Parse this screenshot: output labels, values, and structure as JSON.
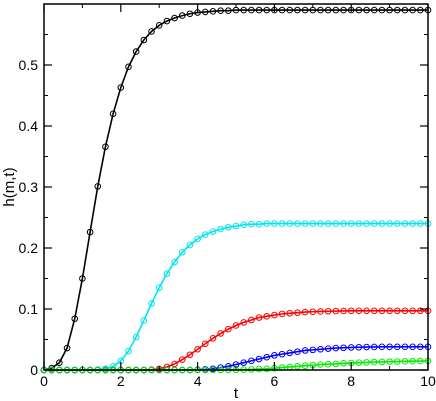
{
  "chart_data": {
    "type": "line",
    "title": "",
    "xlabel": "t",
    "ylabel": "h(m,t)",
    "xlim": [
      0,
      10
    ],
    "ylim": [
      0,
      0.6
    ],
    "xticks": [
      0,
      2,
      4,
      6,
      8,
      10
    ],
    "xtick_labels": [
      "0",
      "2",
      "4",
      "6",
      "8",
      "10"
    ],
    "yticks": [
      0,
      0.1,
      0.2,
      0.3,
      0.4,
      0.5
    ],
    "ytick_labels": [
      "0",
      "0.1",
      "0.2",
      "0.3",
      "0.4",
      "0.5"
    ],
    "grid": false,
    "legend": "none",
    "marker": "open-circle",
    "series": [
      {
        "color": "#000000",
        "x": [
          0,
          0.2,
          0.4,
          0.6,
          0.8,
          1.0,
          1.2,
          1.4,
          1.6,
          1.8,
          2.0,
          2.2,
          2.4,
          2.6,
          2.8,
          3.0,
          3.2,
          3.4,
          3.6,
          3.8,
          4.0,
          4.2,
          4.4,
          4.6,
          4.8,
          5.0,
          5.2,
          5.4,
          5.6,
          5.8,
          6.0,
          6.2,
          6.4,
          6.6,
          6.8,
          7.0,
          7.2,
          7.4,
          7.6,
          7.8,
          8.0,
          8.2,
          8.4,
          8.6,
          8.8,
          9.0,
          9.2,
          9.4,
          9.6,
          9.8,
          10.0
        ],
        "values": [
          0.0,
          0.003,
          0.012,
          0.036,
          0.084,
          0.15,
          0.226,
          0.301,
          0.366,
          0.42,
          0.463,
          0.497,
          0.522,
          0.541,
          0.555,
          0.565,
          0.572,
          0.577,
          0.581,
          0.584,
          0.586,
          0.587,
          0.588,
          0.589,
          0.589,
          0.59,
          0.59,
          0.59,
          0.59,
          0.59,
          0.59,
          0.59,
          0.59,
          0.59,
          0.59,
          0.59,
          0.59,
          0.59,
          0.59,
          0.59,
          0.59,
          0.59,
          0.59,
          0.59,
          0.59,
          0.59,
          0.59,
          0.59,
          0.59,
          0.59,
          0.59
        ]
      },
      {
        "color": "#00e5ee",
        "x": [
          0,
          0.2,
          0.4,
          0.6,
          0.8,
          1.0,
          1.2,
          1.4,
          1.6,
          1.8,
          2.0,
          2.2,
          2.4,
          2.6,
          2.8,
          3.0,
          3.2,
          3.4,
          3.6,
          3.8,
          4.0,
          4.2,
          4.4,
          4.6,
          4.8,
          5.0,
          5.2,
          5.4,
          5.6,
          5.8,
          6.0,
          6.2,
          6.4,
          6.6,
          6.8,
          7.0,
          7.2,
          7.4,
          7.6,
          7.8,
          8.0,
          8.2,
          8.4,
          8.6,
          8.8,
          9.0,
          9.2,
          9.4,
          9.6,
          9.8,
          10.0
        ],
        "values": [
          0,
          0,
          0,
          0,
          0,
          0,
          0,
          0.0005,
          0.002,
          0.006,
          0.015,
          0.031,
          0.054,
          0.081,
          0.109,
          0.135,
          0.158,
          0.177,
          0.193,
          0.205,
          0.215,
          0.222,
          0.227,
          0.231,
          0.234,
          0.236,
          0.238,
          0.239,
          0.239,
          0.24,
          0.24,
          0.24,
          0.24,
          0.24,
          0.24,
          0.24,
          0.24,
          0.24,
          0.24,
          0.24,
          0.24,
          0.24,
          0.24,
          0.24,
          0.24,
          0.24,
          0.24,
          0.24,
          0.24,
          0.24,
          0.24
        ]
      },
      {
        "color": "#ff0000",
        "x": [
          0,
          0.2,
          0.4,
          0.6,
          0.8,
          1.0,
          1.2,
          1.4,
          1.6,
          1.8,
          2.0,
          2.2,
          2.4,
          2.6,
          2.8,
          3.0,
          3.2,
          3.4,
          3.6,
          3.8,
          4.0,
          4.2,
          4.4,
          4.6,
          4.8,
          5.0,
          5.2,
          5.4,
          5.6,
          5.8,
          6.0,
          6.2,
          6.4,
          6.6,
          6.8,
          7.0,
          7.2,
          7.4,
          7.6,
          7.8,
          8.0,
          8.2,
          8.4,
          8.6,
          8.8,
          9.0,
          9.2,
          9.4,
          9.6,
          9.8,
          10.0
        ],
        "values": [
          0,
          0,
          0,
          0,
          0,
          0,
          0,
          0,
          0,
          0,
          0,
          0,
          0,
          0,
          0.0005,
          0.002,
          0.005,
          0.01,
          0.017,
          0.025,
          0.034,
          0.043,
          0.052,
          0.06,
          0.067,
          0.073,
          0.078,
          0.082,
          0.086,
          0.088,
          0.09,
          0.092,
          0.093,
          0.094,
          0.095,
          0.0955,
          0.096,
          0.0963,
          0.0966,
          0.0968,
          0.097,
          0.097,
          0.097,
          0.097,
          0.097,
          0.097,
          0.097,
          0.097,
          0.097,
          0.097,
          0.097
        ]
      },
      {
        "color": "#0000ff",
        "x": [
          0,
          0.2,
          0.4,
          0.6,
          0.8,
          1.0,
          1.2,
          1.4,
          1.6,
          1.8,
          2.0,
          2.2,
          2.4,
          2.6,
          2.8,
          3.0,
          3.2,
          3.4,
          3.6,
          3.8,
          4.0,
          4.2,
          4.4,
          4.6,
          4.8,
          5.0,
          5.2,
          5.4,
          5.6,
          5.8,
          6.0,
          6.2,
          6.4,
          6.6,
          6.8,
          7.0,
          7.2,
          7.4,
          7.6,
          7.8,
          8.0,
          8.2,
          8.4,
          8.6,
          8.8,
          9.0,
          9.2,
          9.4,
          9.6,
          9.8,
          10.0
        ],
        "values": [
          0,
          0,
          0,
          0,
          0,
          0,
          0,
          0,
          0,
          0,
          0,
          0,
          0,
          0,
          0,
          0,
          0,
          0,
          0,
          0,
          0.0005,
          0.001,
          0.002,
          0.004,
          0.006,
          0.009,
          0.012,
          0.015,
          0.018,
          0.021,
          0.024,
          0.026,
          0.028,
          0.03,
          0.032,
          0.033,
          0.034,
          0.035,
          0.036,
          0.0365,
          0.037,
          0.0373,
          0.0376,
          0.0378,
          0.038,
          0.038,
          0.038,
          0.038,
          0.038,
          0.038,
          0.038
        ]
      },
      {
        "color": "#00ee00",
        "x": [
          0,
          0.2,
          0.4,
          0.6,
          0.8,
          1.0,
          1.2,
          1.4,
          1.6,
          1.8,
          2.0,
          2.2,
          2.4,
          2.6,
          2.8,
          3.0,
          3.2,
          3.4,
          3.6,
          3.8,
          4.0,
          4.2,
          4.4,
          4.6,
          4.8,
          5.0,
          5.2,
          5.4,
          5.6,
          5.8,
          6.0,
          6.2,
          6.4,
          6.6,
          6.8,
          7.0,
          7.2,
          7.4,
          7.6,
          7.8,
          8.0,
          8.2,
          8.4,
          8.6,
          8.8,
          9.0,
          9.2,
          9.4,
          9.6,
          9.8,
          10.0
        ],
        "values": [
          0,
          0,
          0,
          0,
          0,
          0,
          0,
          0,
          0,
          0,
          0,
          0,
          0,
          0,
          0,
          0,
          0,
          0,
          0,
          0,
          0,
          0,
          0,
          0,
          0,
          0.0002,
          0.0005,
          0.001,
          0.0015,
          0.002,
          0.003,
          0.004,
          0.005,
          0.006,
          0.007,
          0.008,
          0.009,
          0.0095,
          0.01,
          0.011,
          0.0115,
          0.012,
          0.0125,
          0.013,
          0.0133,
          0.0136,
          0.0139,
          0.0142,
          0.0144,
          0.0146,
          0.0148
        ]
      }
    ]
  }
}
